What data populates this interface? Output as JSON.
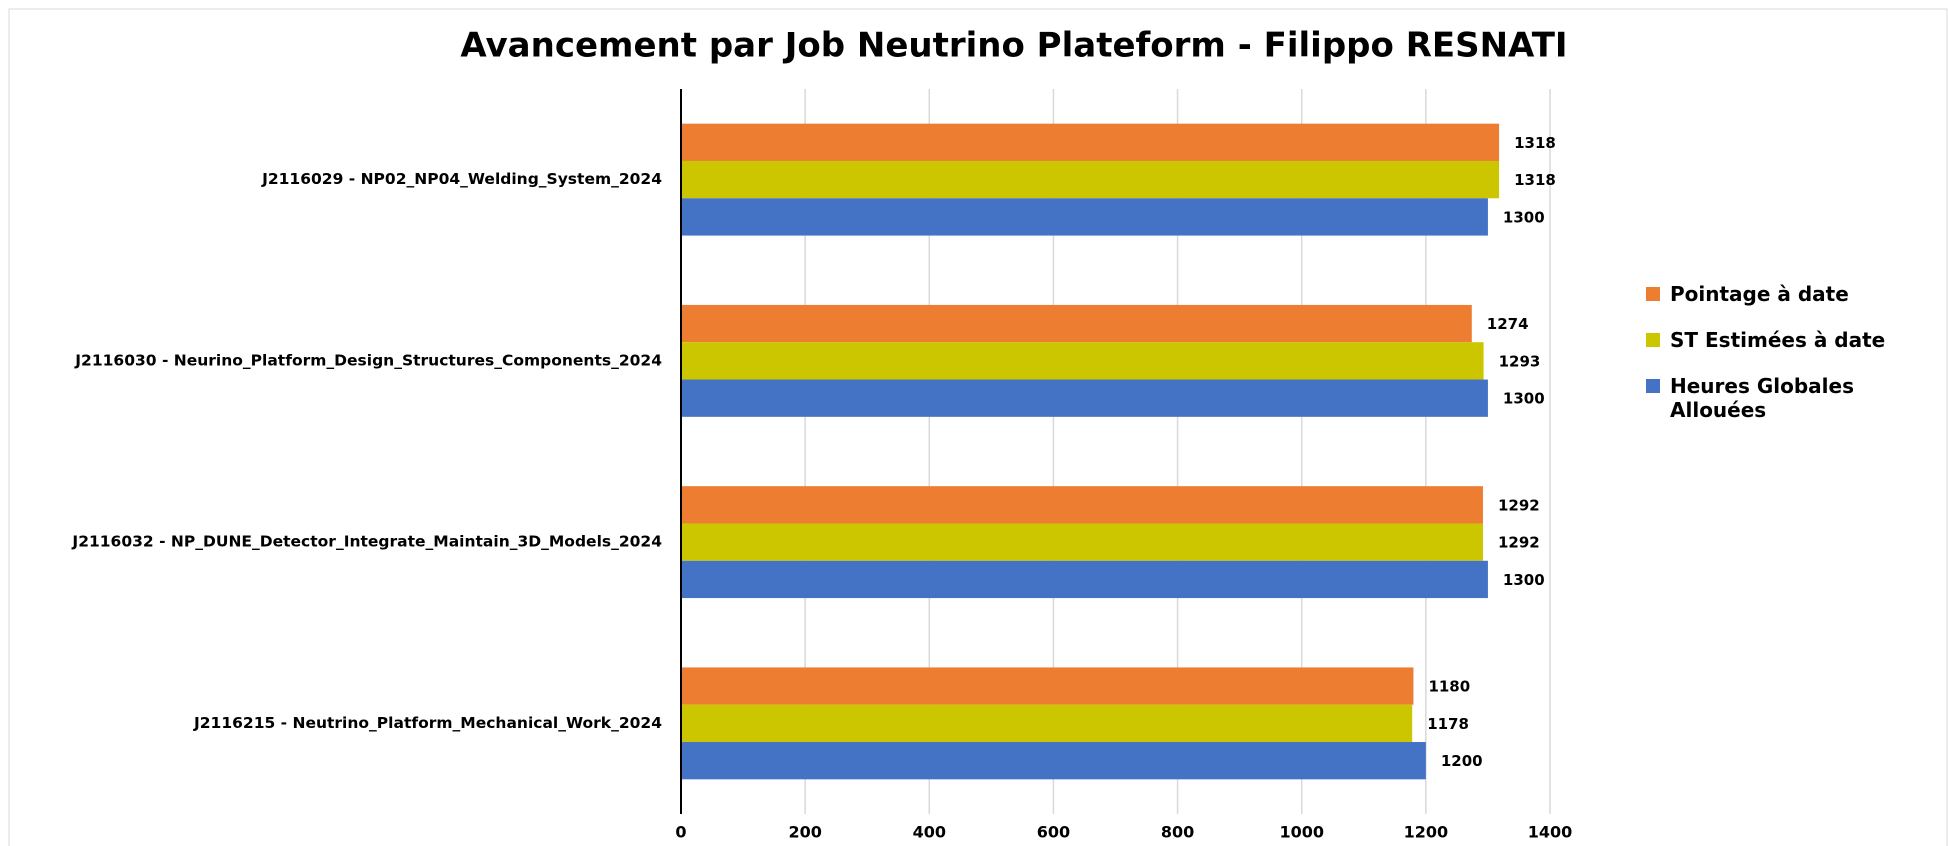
{
  "chart_data": {
    "type": "barh",
    "title": "Avancement par Job Neutrino Plateform - Filippo RESNATI",
    "categories": [
      "J2116029 - NP02_NP04_Welding_System_2024",
      "J2116030 - Neurino_Platform_Design_Structures_Components_2024",
      "J2116032 - NP_DUNE_Detector_Integrate_Maintain_3D_Models_2024",
      "J2116215 - Neutrino_Platform_Mechanical_Work_2024"
    ],
    "series": [
      {
        "name": "Pointage à date",
        "color": "#ED7D31",
        "values": [
          1318,
          1274,
          1292,
          1180
        ]
      },
      {
        "name": "ST Estimées à date",
        "color": "#CCC600",
        "values": [
          1318,
          1293,
          1292,
          1178
        ]
      },
      {
        "name": "Heures Globales Allouées",
        "color": "#4472C4",
        "values": [
          1300,
          1300,
          1300,
          1200
        ]
      }
    ],
    "xlim": [
      0,
      1400
    ],
    "xticks": [
      0,
      200,
      400,
      600,
      800,
      1000,
      1200,
      1400
    ],
    "grid": true
  }
}
